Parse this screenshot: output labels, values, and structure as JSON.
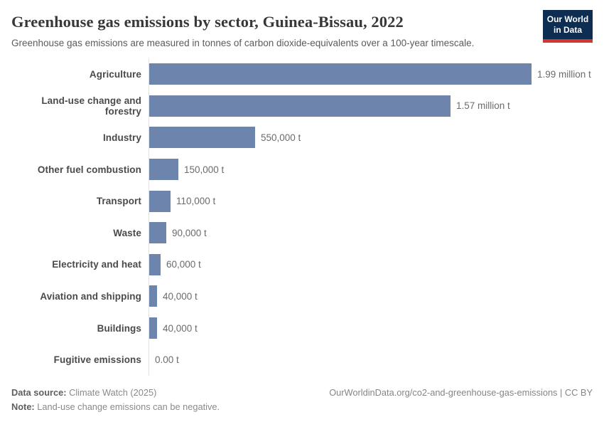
{
  "header": {
    "title": "Greenhouse gas emissions by sector, Guinea-Bissau, 2022",
    "subtitle": "Greenhouse gas emissions are measured in tonnes of carbon dioxide-equivalents over a 100-year timescale.",
    "logo": {
      "line1": "Our World",
      "line2": "in Data",
      "bg_color": "#0d2d52",
      "accent_color": "#d4352c"
    }
  },
  "chart_data": {
    "type": "bar",
    "orientation": "horizontal",
    "title": "Greenhouse gas emissions by sector, Guinea-Bissau, 2022",
    "categories": [
      "Agriculture",
      "Land-use change and forestry",
      "Industry",
      "Other fuel combustion",
      "Transport",
      "Waste",
      "Electricity and heat",
      "Aviation and shipping",
      "Buildings",
      "Fugitive emissions"
    ],
    "values": [
      1990000,
      1570000,
      550000,
      150000,
      110000,
      90000,
      60000,
      40000,
      40000,
      0
    ],
    "value_labels": [
      "1.99 million t",
      "1.57 million t",
      "550,000 t",
      "150,000 t",
      "110,000 t",
      "90,000 t",
      "60,000 t",
      "40,000 t",
      "40,000 t",
      "0.00 t"
    ],
    "unit": "tonnes CO2-equivalents",
    "xlim": [
      0,
      1990000
    ],
    "bar_color": "#6d84ad",
    "axis_line_color": "#e2e2e2",
    "grid": false,
    "legend_position": "none"
  },
  "footer": {
    "data_source_label": "Data source:",
    "data_source_value": " Climate Watch (2025)",
    "note_label": "Note:",
    "note_value": " Land-use change emissions can be negative.",
    "url_text": "OurWorldinData.org/co2-and-greenhouse-gas-emissions | CC BY"
  }
}
